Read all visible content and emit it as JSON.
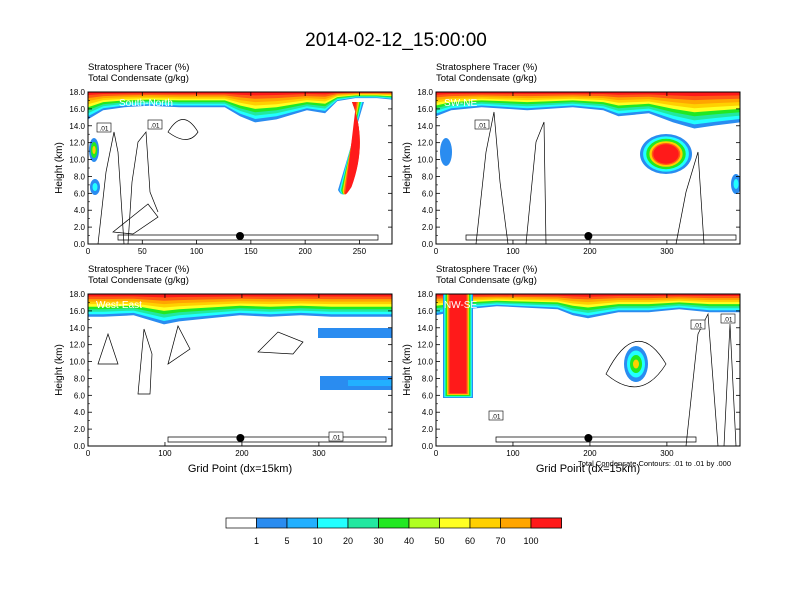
{
  "title": "2014-02-12_15:00:00",
  "footnote": "Total Condensate Contours: .01 to .01 by .000",
  "colors": {
    "levels": [
      "#ffffff",
      "#2a8cf0",
      "#22b0ff",
      "#22ffff",
      "#22e8a0",
      "#22e822",
      "#b0ff22",
      "#ffff22",
      "#ffd000",
      "#ffa500",
      "#ff5a14",
      "#ff1a1a"
    ]
  },
  "colorbar": {
    "labels": [
      "1",
      "5",
      "10",
      "20",
      "30",
      "40",
      "50",
      "60",
      "70",
      "100"
    ]
  },
  "chart_data": [
    {
      "type": "heatmap",
      "title_lines": [
        "Stratosphere Tracer   (%)",
        "Total Condensate   (g/kg)"
      ],
      "section_label": "South-North",
      "xlabel": "",
      "ylabel": "Height (km)",
      "xlim": [
        0,
        280
      ],
      "ylim": [
        0,
        18
      ],
      "xticks": [
        0,
        50,
        100,
        150,
        200,
        250
      ],
      "yticks": [
        "0.0",
        "2.0",
        "4.0",
        "6.0",
        "8.0",
        "10.0",
        "12.0",
        "14.0",
        "16.0",
        "18.0"
      ],
      "contour_labels": [
        ".01",
        ".01"
      ],
      "marker_x": 140
    },
    {
      "type": "heatmap",
      "title_lines": [
        "Stratosphere Tracer   (%)",
        "Total Condensate   (g/kg)"
      ],
      "section_label": "SW-NE",
      "xlabel": "",
      "ylabel": "Height (km)",
      "xlim": [
        0,
        395
      ],
      "ylim": [
        0,
        18
      ],
      "xticks": [
        0,
        100,
        200,
        300
      ],
      "yticks": [
        "0.0",
        "2.0",
        "4.0",
        "6.0",
        "8.0",
        "10.0",
        "12.0",
        "14.0",
        "16.0",
        "18.0"
      ],
      "contour_labels": [
        ".01"
      ],
      "marker_x": 198
    },
    {
      "type": "heatmap",
      "title_lines": [
        "Stratosphere Tracer   (%)",
        "Total Condensate   (g/kg)"
      ],
      "section_label": "West-East",
      "xlabel": "Grid Point (dx=15km)",
      "ylabel": "Height (km)",
      "xlim": [
        0,
        395
      ],
      "ylim": [
        0,
        18
      ],
      "xticks": [
        0,
        100,
        200,
        300
      ],
      "yticks": [
        "0.0",
        "2.0",
        "4.0",
        "6.0",
        "8.0",
        "10.0",
        "12.0",
        "14.0",
        "16.0",
        "18.0"
      ],
      "contour_labels": [
        ".01"
      ],
      "marker_x": 198
    },
    {
      "type": "heatmap",
      "title_lines": [
        "Stratosphere Tracer   (%)",
        "Total Condensate   (g/kg)"
      ],
      "section_label": "NW-SE",
      "xlabel": "Grid Point (dx=15km)",
      "ylabel": "Height (km)",
      "xlim": [
        0,
        395
      ],
      "ylim": [
        0,
        18
      ],
      "xticks": [
        0,
        100,
        200,
        300
      ],
      "yticks": [
        "0.0",
        "2.0",
        "4.0",
        "6.0",
        "8.0",
        "10.0",
        "12.0",
        "14.0",
        "16.0",
        "18.0"
      ],
      "contour_labels": [
        ".01",
        ".01",
        ".01"
      ],
      "marker_x": 198
    }
  ]
}
